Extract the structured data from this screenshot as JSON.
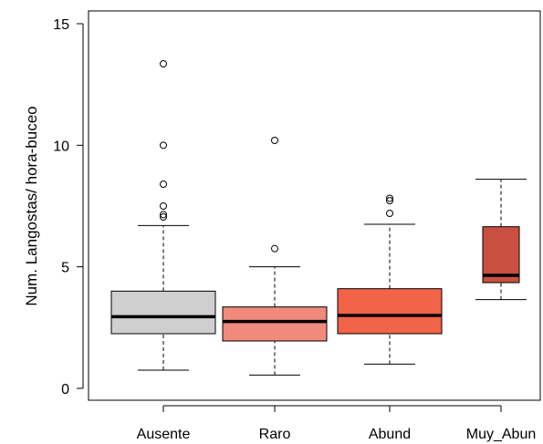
{
  "chart_data": {
    "type": "boxplot",
    "title": "",
    "xlabel": "",
    "ylabel": "Num. Langostas/ hora-buceo",
    "ylim": [
      -0.3,
      15.5
    ],
    "yticks": [
      0,
      5,
      10,
      15
    ],
    "categories": [
      "Ausente",
      "Raro",
      "Abund",
      "Muy_Abun"
    ],
    "boxes": [
      {
        "category": "Ausente",
        "whisker_low": 0.75,
        "q1": 2.25,
        "median": 2.95,
        "q3": 4.0,
        "whisker_high": 6.7,
        "outliers": [
          7.05,
          7.15,
          7.5,
          8.4,
          10.0,
          13.35
        ],
        "color": "#cfcfcf"
      },
      {
        "category": "Raro",
        "whisker_low": 0.55,
        "q1": 1.95,
        "median": 2.75,
        "q3": 3.35,
        "whisker_high": 5.0,
        "outliers": [
          5.75,
          10.2
        ],
        "color": "#f08a7b"
      },
      {
        "category": "Abund",
        "whisker_low": 1.0,
        "q1": 2.25,
        "median": 3.0,
        "q3": 4.1,
        "whisker_high": 6.75,
        "outliers": [
          7.2,
          7.72,
          7.82
        ],
        "color": "#f26447"
      },
      {
        "category": "Muy_Abun",
        "whisker_low": 3.65,
        "q1": 4.35,
        "median": 4.65,
        "q3": 6.65,
        "whisker_high": 8.6,
        "outliers": [],
        "color": "#c95040"
      }
    ]
  }
}
